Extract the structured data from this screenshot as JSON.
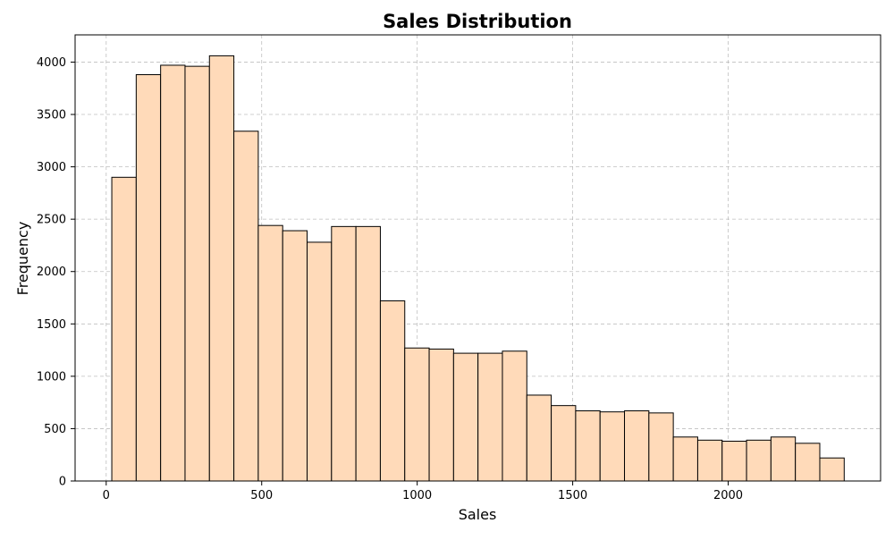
{
  "chart_data": {
    "type": "bar",
    "title": "Sales Distribution",
    "xlabel": "Sales",
    "ylabel": "Frequency",
    "xlim": [
      -100,
      2490
    ],
    "ylim": [
      0,
      4260
    ],
    "xticks": [
      0,
      500,
      1000,
      1500,
      2000
    ],
    "yticks": [
      0,
      500,
      1000,
      1500,
      2000,
      2500,
      3000,
      3500,
      4000
    ],
    "bin_start": 18,
    "bin_width": 78.5,
    "values": [
      2900,
      3880,
      3970,
      3960,
      4060,
      3340,
      2440,
      2390,
      2280,
      2430,
      2430,
      1720,
      1270,
      1260,
      1220,
      1220,
      1240,
      820,
      720,
      670,
      660,
      670,
      650,
      420,
      390,
      380,
      390,
      420,
      360,
      220
    ],
    "grid": true,
    "colors": {
      "bar_fill": "#ffdab9",
      "bar_edge": "#000000",
      "grid": "#b0b0b0"
    }
  }
}
